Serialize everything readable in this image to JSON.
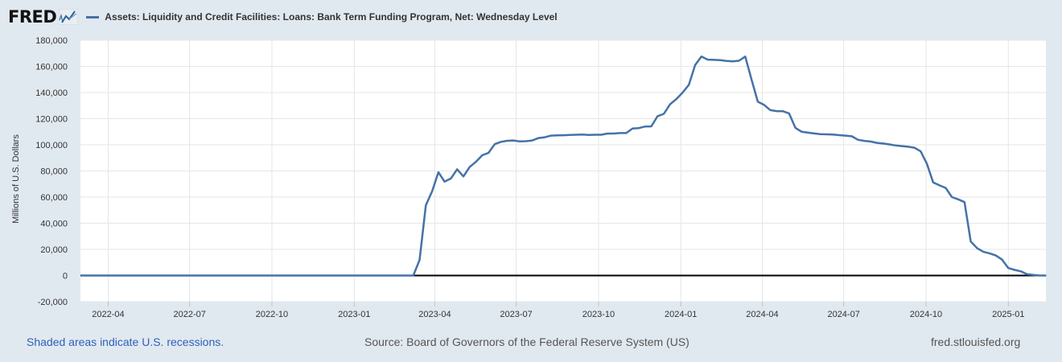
{
  "header": {
    "logo_text": "FRED",
    "logo_icon": "fred-chart-icon",
    "series_title": "Assets: Liquidity and Credit Facilities: Loans: Bank Term Funding Program, Net: Wednesday Level"
  },
  "footer": {
    "recession_note": "Shaded areas indicate U.S. recessions.",
    "source": "Source: Board of Governors of the Federal Reserve System (US)",
    "site": "fred.stlouisfed.org"
  },
  "colors": {
    "series": "#4572a7",
    "background": "#e1e9f0",
    "plot": "#ffffff",
    "zero_line": "#000000"
  },
  "chart_data": {
    "type": "line",
    "title": "",
    "xlabel": "",
    "ylabel": "Millions of U.S. Dollars",
    "ylim": [
      -20000,
      180000
    ],
    "xlim": [
      "2022-03-01",
      "2025-02-12"
    ],
    "grid": true,
    "yticks": [
      -20000,
      0,
      20000,
      40000,
      60000,
      80000,
      100000,
      120000,
      140000,
      160000,
      180000
    ],
    "ytick_labels": [
      "-20,000",
      "0",
      "20,000",
      "40,000",
      "60,000",
      "80,000",
      "100,000",
      "120,000",
      "140,000",
      "160,000",
      "180,000"
    ],
    "xticks": [
      "2022-04-01",
      "2022-07-01",
      "2022-10-01",
      "2023-01-01",
      "2023-04-01",
      "2023-07-01",
      "2023-10-01",
      "2024-01-01",
      "2024-04-01",
      "2024-07-01",
      "2024-10-01",
      "2025-01-01"
    ],
    "xtick_labels": [
      "2022-04",
      "2022-07",
      "2022-10",
      "2023-01",
      "2023-04",
      "2023-07",
      "2023-10",
      "2024-01",
      "2024-04",
      "2024-07",
      "2024-10",
      "2025-01"
    ],
    "series": [
      {
        "name": "Assets: Liquidity and Credit Facilities: Loans: Bank Term Funding Program, Net: Wednesday Level",
        "x": [
          "2022-03-02",
          "2023-03-08",
          "2023-03-15",
          "2023-03-22",
          "2023-03-29",
          "2023-04-05",
          "2023-04-12",
          "2023-04-19",
          "2023-04-26",
          "2023-05-03",
          "2023-05-10",
          "2023-05-17",
          "2023-05-24",
          "2023-05-31",
          "2023-06-07",
          "2023-06-14",
          "2023-06-21",
          "2023-06-28",
          "2023-07-05",
          "2023-07-12",
          "2023-07-19",
          "2023-07-26",
          "2023-08-02",
          "2023-08-09",
          "2023-08-16",
          "2023-08-23",
          "2023-08-30",
          "2023-09-06",
          "2023-09-13",
          "2023-09-20",
          "2023-09-27",
          "2023-10-04",
          "2023-10-11",
          "2023-10-18",
          "2023-10-25",
          "2023-11-01",
          "2023-11-08",
          "2023-11-15",
          "2023-11-22",
          "2023-11-29",
          "2023-12-06",
          "2023-12-13",
          "2023-12-20",
          "2023-12-27",
          "2024-01-03",
          "2024-01-10",
          "2024-01-17",
          "2024-01-24",
          "2024-01-31",
          "2024-02-07",
          "2024-02-14",
          "2024-02-21",
          "2024-02-28",
          "2024-03-06",
          "2024-03-13",
          "2024-03-20",
          "2024-03-27",
          "2024-04-03",
          "2024-04-10",
          "2024-04-17",
          "2024-04-24",
          "2024-05-01",
          "2024-05-08",
          "2024-05-15",
          "2024-05-22",
          "2024-05-29",
          "2024-06-05",
          "2024-06-12",
          "2024-06-19",
          "2024-06-26",
          "2024-07-03",
          "2024-07-10",
          "2024-07-17",
          "2024-07-24",
          "2024-07-31",
          "2024-08-07",
          "2024-08-14",
          "2024-08-21",
          "2024-08-28",
          "2024-09-04",
          "2024-09-11",
          "2024-09-18",
          "2024-09-25",
          "2024-10-02",
          "2024-10-09",
          "2024-10-16",
          "2024-10-23",
          "2024-10-30",
          "2024-11-06",
          "2024-11-13",
          "2024-11-20",
          "2024-11-27",
          "2024-12-04",
          "2024-12-11",
          "2024-12-18",
          "2024-12-25",
          "2025-01-01",
          "2025-01-08",
          "2025-01-15",
          "2025-01-22",
          "2025-01-29",
          "2025-02-05",
          "2025-02-12"
        ],
        "y": [
          0,
          0,
          11900,
          53700,
          64400,
          79000,
          71800,
          74200,
          81300,
          75800,
          83000,
          87000,
          92000,
          93800,
          100500,
          102300,
          103100,
          103300,
          102600,
          102800,
          103300,
          105200,
          105800,
          107000,
          107200,
          107300,
          107500,
          107700,
          107800,
          107600,
          107700,
          107700,
          108600,
          108600,
          109000,
          109000,
          112500,
          112800,
          114000,
          114100,
          121900,
          123700,
          131000,
          135000,
          140000,
          146000,
          161000,
          167500,
          165200,
          165000,
          164800,
          164200,
          163800,
          164300,
          167500,
          150000,
          133000,
          130500,
          126500,
          125800,
          125700,
          124000,
          113000,
          110000,
          109300,
          108700,
          108100,
          108000,
          107900,
          107400,
          107000,
          106500,
          103800,
          103000,
          102500,
          101500,
          101000,
          100300,
          99500,
          99000,
          98500,
          97800,
          95000,
          85500,
          71200,
          69000,
          67000,
          60000,
          58300,
          56200,
          26000,
          21000,
          18200,
          17000,
          15300,
          12200,
          5700,
          4300,
          3200,
          1000,
          500,
          0,
          0
        ]
      }
    ]
  }
}
